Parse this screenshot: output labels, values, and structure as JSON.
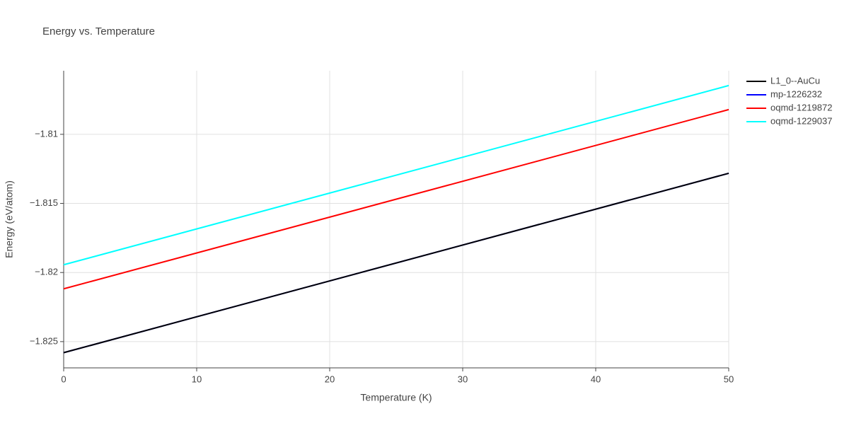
{
  "chart_data": {
    "type": "line",
    "title": "Energy vs. Temperature",
    "x_label": "Temperature (K)",
    "y_label": "Energy (eV/atom)",
    "x": [
      0,
      50
    ],
    "series": [
      {
        "name": "L1_0--AuCu",
        "color": "#000000",
        "values": [
          -1.8258,
          -1.81282
        ]
      },
      {
        "name": "mp-1226232",
        "color": "#0000ff",
        "values": [
          -1.8258,
          -1.81282
        ]
      },
      {
        "name": "oqmd-1219872",
        "color": "#ff0000",
        "values": [
          -1.82118,
          -1.80821
        ]
      },
      {
        "name": "oqmd-1229037",
        "color": "#00ffff",
        "values": [
          -1.81944,
          -1.80647
        ]
      }
    ],
    "xlim": [
      0,
      50
    ],
    "xticks": [
      0,
      10,
      20,
      30,
      40,
      50
    ],
    "ylim": [
      -1.8269,
      -1.8054
    ],
    "yticks": [
      {
        "value": -1.825,
        "label": "−1.825"
      },
      {
        "value": -1.82,
        "label": "−1.82"
      },
      {
        "value": -1.815,
        "label": "−1.815"
      },
      {
        "value": -1.81,
        "label": "−1.81"
      }
    ],
    "grid": true
  }
}
